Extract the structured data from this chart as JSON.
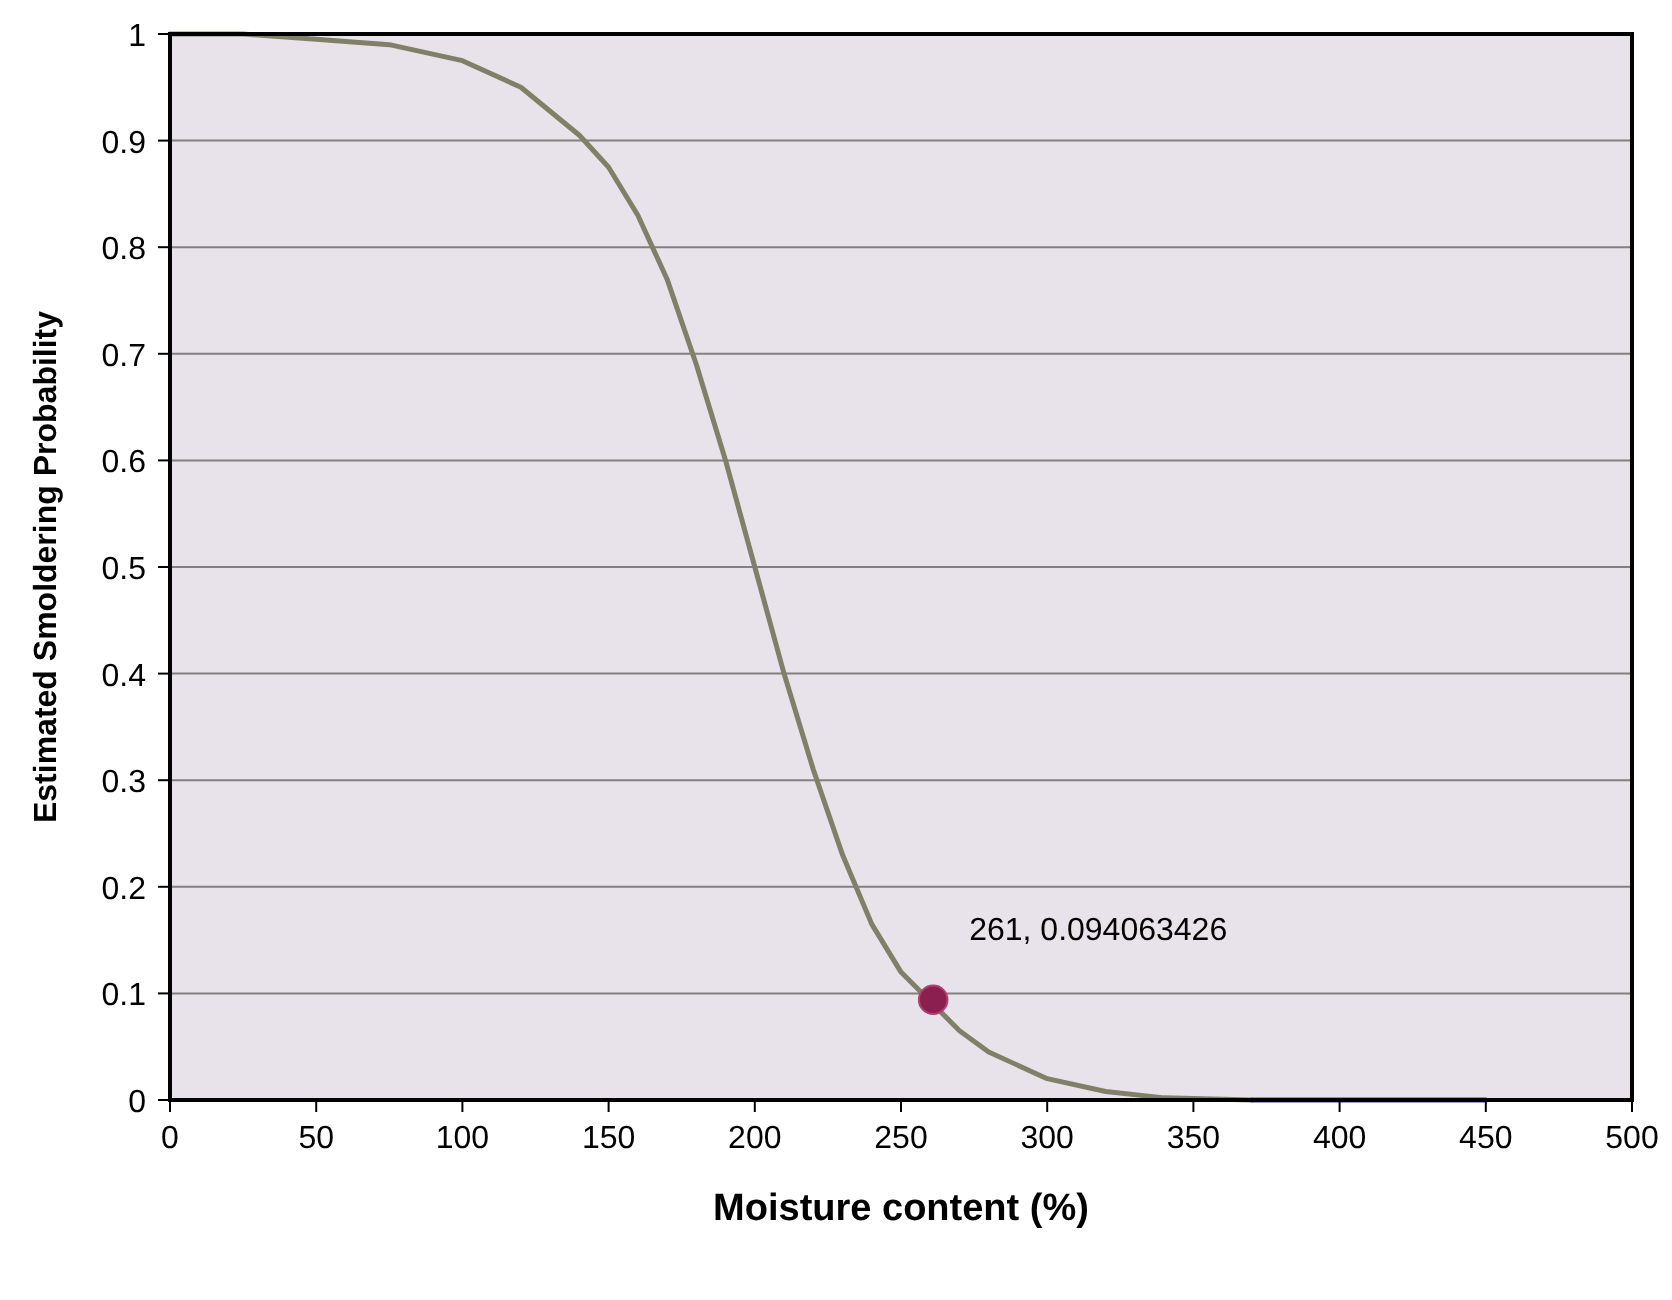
{
  "chart_data": {
    "type": "line",
    "xlabel": "Moisture content (%)",
    "ylabel": "Estimated Smoldering Probability",
    "xlim": [
      0,
      500
    ],
    "xticks": [
      0,
      50,
      100,
      150,
      200,
      250,
      300,
      350,
      400,
      450,
      500
    ],
    "ylim": [
      0,
      1
    ],
    "yticks": [
      0,
      0.1,
      0.2,
      0.3,
      0.4,
      0.5,
      0.6,
      0.7,
      0.8,
      0.9,
      1
    ],
    "grid": "y",
    "marker": "none",
    "line_style": "solid",
    "series": [
      {
        "color": "#7f8068",
        "x": [
          0,
          25,
          50,
          75,
          100,
          120,
          140,
          150,
          160,
          170,
          180,
          190,
          200,
          210,
          220,
          230,
          240,
          250,
          270,
          280,
          300,
          320,
          340,
          370
        ],
        "values": [
          1,
          1,
          0.995,
          0.99,
          0.975,
          0.95,
          0.905,
          0.875,
          0.83,
          0.77,
          0.69,
          0.6,
          0.5,
          0.4,
          0.31,
          0.23,
          0.165,
          0.12,
          0.065,
          0.045,
          0.02,
          0.008,
          0.002,
          0
        ]
      },
      {
        "color": "#3c3ca8",
        "x": [
          370,
          450
        ],
        "values": [
          0,
          0
        ]
      },
      {
        "type": "scatter",
        "marker": "circle",
        "color": "#8b1f4f",
        "x": [
          261
        ],
        "values": [
          0.094063426
        ]
      }
    ],
    "annotations": [
      {
        "text": "261, 0.094063426",
        "x": 261,
        "y": 0.094063426
      }
    ]
  }
}
